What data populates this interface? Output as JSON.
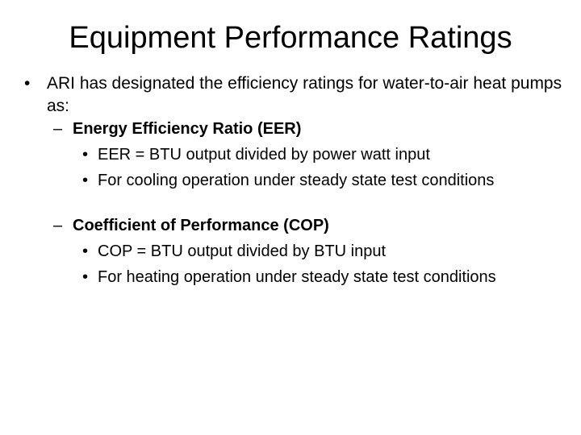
{
  "slide": {
    "title": "Equipment Performance Ratings",
    "bullet_char": "•",
    "dash_char": "–",
    "main_point": "ARI has designated the efficiency ratings for water-to-air heat pumps as:",
    "sections": [
      {
        "heading": "Energy Efficiency Ratio (EER)",
        "items": [
          "EER = BTU output divided by power watt input",
          "For cooling operation under steady state test conditions"
        ]
      },
      {
        "heading": "Coefficient of Performance (COP)",
        "items": [
          "COP = BTU output divided by BTU input",
          "For heating operation under steady state test conditions"
        ]
      }
    ]
  }
}
